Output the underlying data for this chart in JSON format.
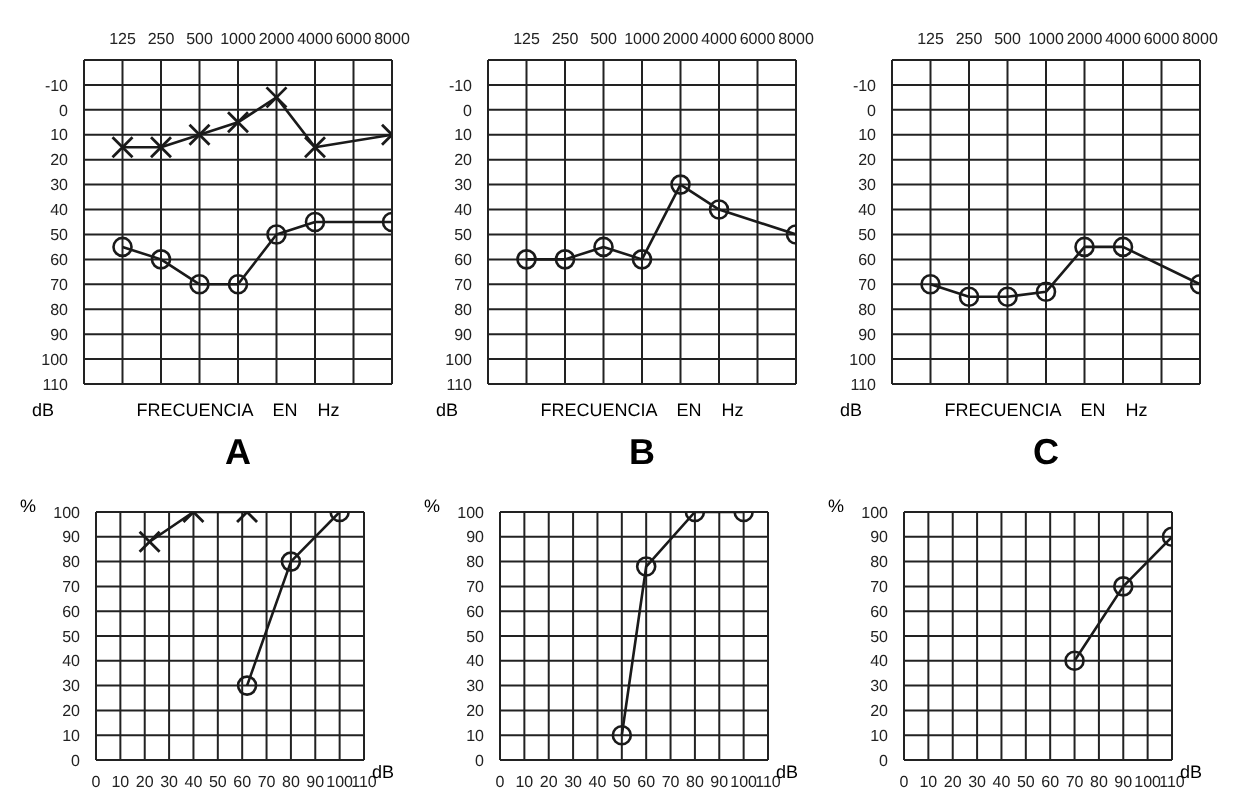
{
  "chart_data": [
    {
      "type": "line",
      "title": "A",
      "xlabel": "FRECUENCIA    EN    Hz",
      "ylabel": "dB",
      "categories": [
        "125",
        "250",
        "500",
        "1000",
        "2000",
        "4000",
        "6000",
        "8000"
      ],
      "series": [
        {
          "color": "#1a1a1a",
          "marker": "cross",
          "values": [
            15,
            15,
            10,
            5,
            -5,
            15,
            null,
            10
          ]
        },
        {
          "color": "#1a1a1a",
          "marker": "circle",
          "values": [
            55,
            60,
            70,
            70,
            50,
            45,
            null,
            45
          ]
        }
      ],
      "ylim": [
        110,
        -20
      ],
      "yticks": [
        -10,
        0,
        10,
        20,
        30,
        40,
        50,
        60,
        70,
        80,
        90,
        100,
        110
      ],
      "grid": true,
      "line_style": "solid"
    },
    {
      "type": "line",
      "title": "B",
      "xlabel": "FRECUENCIA    EN    Hz",
      "ylabel": "dB",
      "categories": [
        "125",
        "250",
        "500",
        "1000",
        "2000",
        "4000",
        "6000",
        "8000"
      ],
      "series": [
        {
          "color": "#1a1a1a",
          "marker": "circle",
          "values": [
            60,
            60,
            55,
            60,
            30,
            40,
            null,
            50
          ]
        }
      ],
      "ylim": [
        110,
        -20
      ],
      "yticks": [
        -10,
        0,
        10,
        20,
        30,
        40,
        50,
        60,
        70,
        80,
        90,
        100,
        110
      ],
      "grid": true,
      "line_style": "solid"
    },
    {
      "type": "line",
      "title": "C",
      "xlabel": "FRECUENCIA    EN    Hz",
      "ylabel": "dB",
      "categories": [
        "125",
        "250",
        "500",
        "1000",
        "2000",
        "4000",
        "6000",
        "8000"
      ],
      "series": [
        {
          "color": "#1a1a1a",
          "marker": "circle",
          "values": [
            70,
            75,
            75,
            73,
            55,
            55,
            null,
            70
          ]
        }
      ],
      "ylim": [
        110,
        -20
      ],
      "yticks": [
        -10,
        0,
        10,
        20,
        30,
        40,
        50,
        60,
        70,
        80,
        90,
        100,
        110
      ],
      "grid": true,
      "line_style": "solid"
    },
    {
      "type": "line",
      "xlabel": "dB",
      "ylabel": "%",
      "series": [
        {
          "color": "#1a1a1a",
          "marker": "cross",
          "x": [
            22,
            40,
            62
          ],
          "values": [
            88,
            100,
            100
          ]
        },
        {
          "color": "#1a1a1a",
          "marker": "circle",
          "x": [
            62,
            80,
            100
          ],
          "values": [
            30,
            80,
            100
          ]
        }
      ],
      "xlim": [
        0,
        110
      ],
      "xticks": [
        0,
        10,
        20,
        30,
        40,
        50,
        60,
        70,
        80,
        90,
        100,
        110
      ],
      "ylim": [
        0,
        100
      ],
      "yticks": [
        0,
        10,
        20,
        30,
        40,
        50,
        60,
        70,
        80,
        90,
        100
      ],
      "grid": true,
      "line_style": "solid"
    },
    {
      "type": "line",
      "xlabel": "dB",
      "ylabel": "%",
      "series": [
        {
          "color": "#1a1a1a",
          "marker": "circle",
          "x": [
            50,
            60,
            80,
            100
          ],
          "values": [
            10,
            78,
            100,
            100
          ]
        }
      ],
      "xlim": [
        0,
        110
      ],
      "xticks": [
        0,
        10,
        20,
        30,
        40,
        50,
        60,
        70,
        80,
        90,
        100,
        110
      ],
      "ylim": [
        0,
        100
      ],
      "yticks": [
        0,
        10,
        20,
        30,
        40,
        50,
        60,
        70,
        80,
        90,
        100
      ],
      "grid": true,
      "line_style": "solid"
    },
    {
      "type": "line",
      "xlabel": "dB",
      "ylabel": "%",
      "series": [
        {
          "color": "#1a1a1a",
          "marker": "circle",
          "x": [
            70,
            90,
            110
          ],
          "values": [
            40,
            70,
            90
          ]
        }
      ],
      "xlim": [
        0,
        110
      ],
      "xticks": [
        0,
        10,
        20,
        30,
        40,
        50,
        60,
        70,
        80,
        90,
        100,
        110
      ],
      "ylim": [
        0,
        100
      ],
      "yticks": [
        0,
        10,
        20,
        30,
        40,
        50,
        60,
        70,
        80,
        90,
        100
      ],
      "grid": true,
      "line_style": "solid"
    }
  ]
}
